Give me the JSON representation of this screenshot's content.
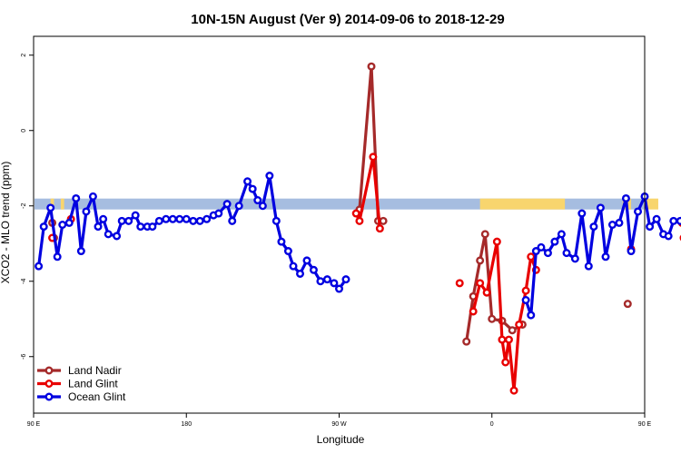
{
  "chart_data": {
    "type": "line",
    "title": "10N-15N August (Ver 9)   2014-09-06 to 2018-12-29",
    "xlabel": "Longitude",
    "ylabel": "XCO2 - MLO trend (ppm)",
    "xlim": [
      90,
      450
    ],
    "ylim": [
      -7.5,
      2.5
    ],
    "x_ticks": [
      {
        "value": 90,
        "label": "90 E"
      },
      {
        "value": 180,
        "label": "180"
      },
      {
        "value": 270,
        "label": "90 W"
      },
      {
        "value": 360,
        "label": "0"
      },
      {
        "value": 450,
        "label": "90 E"
      },
      {
        "value": 540,
        "label": "180"
      }
    ],
    "y_ticks": [
      {
        "value": 2,
        "label": "2"
      },
      {
        "value": 0,
        "label": "0"
      },
      {
        "value": -2,
        "label": "-2"
      },
      {
        "value": -4,
        "label": "-4"
      },
      {
        "value": -6,
        "label": "-6"
      }
    ],
    "legend_position": "bottom-left",
    "band": {
      "y_center": -1.95,
      "ocean_color": "#a6bde0",
      "land_color": "#f8d56e",
      "land_ranges": [
        [
          100,
          102
        ],
        [
          106,
          108
        ],
        [
          353,
          403
        ],
        [
          437,
          442
        ],
        [
          451,
          458
        ]
      ]
    },
    "series": [
      {
        "name": "Land Nadir",
        "color": "#a52a2a",
        "segments": [
          [
            [
              282,
              -2.1
            ],
            [
              289,
              1.7
            ],
            [
              293,
              -2.4
            ],
            [
              296,
              -2.4
            ]
          ],
          [
            [
              345,
              -5.6
            ],
            [
              349,
              -4.4
            ],
            [
              353,
              -3.45
            ],
            [
              356,
              -2.75
            ],
            [
              360,
              -5.0
            ],
            [
              366,
              -5.05
            ],
            [
              372,
              -5.3
            ],
            [
              378,
              -5.15
            ]
          ]
        ],
        "isolated": [
          [
            101,
            -2.45
          ],
          [
            102,
            -2.85
          ],
          [
            440,
            -4.6
          ]
        ]
      },
      {
        "name": "Land Glint",
        "color": "#e80000",
        "segments": [
          [
            [
              280,
              -2.2
            ],
            [
              282,
              -2.4
            ],
            [
              290,
              -0.7
            ],
            [
              294,
              -2.6
            ]
          ],
          [
            [
              349,
              -4.8
            ],
            [
              353,
              -4.05
            ],
            [
              357,
              -4.3
            ],
            [
              363,
              -2.95
            ],
            [
              366,
              -5.55
            ],
            [
              368,
              -6.15
            ],
            [
              370,
              -5.55
            ],
            [
              373,
              -6.9
            ],
            [
              376,
              -5.15
            ],
            [
              380,
              -4.25
            ],
            [
              383,
              -3.35
            ],
            [
              386,
              -3.7
            ]
          ],
          [
            [
              472,
              -2.45
            ],
            [
              473,
              -2.85
            ]
          ]
        ],
        "isolated": [
          [
            101,
            -2.85
          ],
          [
            112,
            -2.35
          ],
          [
            341,
            -4.05
          ],
          [
            442,
            -3.15
          ],
          [
            488,
            -2.35
          ]
        ]
      },
      {
        "name": "Ocean Glint",
        "color": "#0000e0",
        "segments": [
          [
            [
              93,
              -3.6
            ],
            [
              96,
              -2.55
            ],
            [
              100,
              -2.05
            ],
            [
              104,
              -3.35
            ],
            [
              107,
              -2.5
            ],
            [
              111,
              -2.45
            ],
            [
              115,
              -1.8
            ],
            [
              118,
              -3.2
            ],
            [
              121,
              -2.15
            ],
            [
              125,
              -1.75
            ],
            [
              128,
              -2.55
            ],
            [
              131,
              -2.35
            ],
            [
              134,
              -2.75
            ],
            [
              139,
              -2.8
            ],
            [
              142,
              -2.4
            ],
            [
              146,
              -2.4
            ],
            [
              150,
              -2.25
            ],
            [
              153,
              -2.55
            ],
            [
              157,
              -2.55
            ],
            [
              160,
              -2.55
            ],
            [
              164,
              -2.4
            ],
            [
              168,
              -2.35
            ],
            [
              172,
              -2.35
            ],
            [
              176,
              -2.35
            ],
            [
              180,
              -2.35
            ],
            [
              184,
              -2.4
            ],
            [
              188,
              -2.4
            ],
            [
              192,
              -2.35
            ],
            [
              196,
              -2.25
            ],
            [
              199,
              -2.2
            ],
            [
              204,
              -1.95
            ],
            [
              207,
              -2.4
            ],
            [
              211,
              -2.0
            ],
            [
              216,
              -1.35
            ],
            [
              219,
              -1.55
            ],
            [
              222,
              -1.85
            ],
            [
              225,
              -2.0
            ],
            [
              229,
              -1.2
            ],
            [
              233,
              -2.4
            ],
            [
              236,
              -2.95
            ],
            [
              240,
              -3.2
            ],
            [
              243,
              -3.6
            ],
            [
              247,
              -3.8
            ],
            [
              251,
              -3.45
            ],
            [
              255,
              -3.7
            ],
            [
              259,
              -4.0
            ],
            [
              263,
              -3.95
            ],
            [
              267,
              -4.05
            ],
            [
              270,
              -4.2
            ],
            [
              274,
              -3.95
            ]
          ],
          [
            [
              380,
              -4.5
            ],
            [
              383,
              -4.9
            ],
            [
              386,
              -3.2
            ],
            [
              389,
              -3.1
            ],
            [
              393,
              -3.25
            ],
            [
              397,
              -2.95
            ],
            [
              401,
              -2.75
            ],
            [
              404,
              -3.25
            ],
            [
              409,
              -3.4
            ],
            [
              413,
              -2.2
            ],
            [
              417,
              -3.6
            ],
            [
              420,
              -2.55
            ],
            [
              424,
              -2.05
            ],
            [
              427,
              -3.35
            ],
            [
              431,
              -2.5
            ],
            [
              435,
              -2.45
            ],
            [
              439,
              -1.8
            ],
            [
              442,
              -3.2
            ],
            [
              446,
              -2.15
            ],
            [
              450,
              -1.75
            ],
            [
              453,
              -2.55
            ],
            [
              457,
              -2.35
            ],
            [
              461,
              -2.75
            ],
            [
              464,
              -2.8
            ],
            [
              467,
              -2.4
            ],
            [
              471,
              -2.4
            ],
            [
              475,
              -2.25
            ],
            [
              479,
              -2.55
            ]
          ]
        ],
        "isolated": []
      }
    ]
  }
}
